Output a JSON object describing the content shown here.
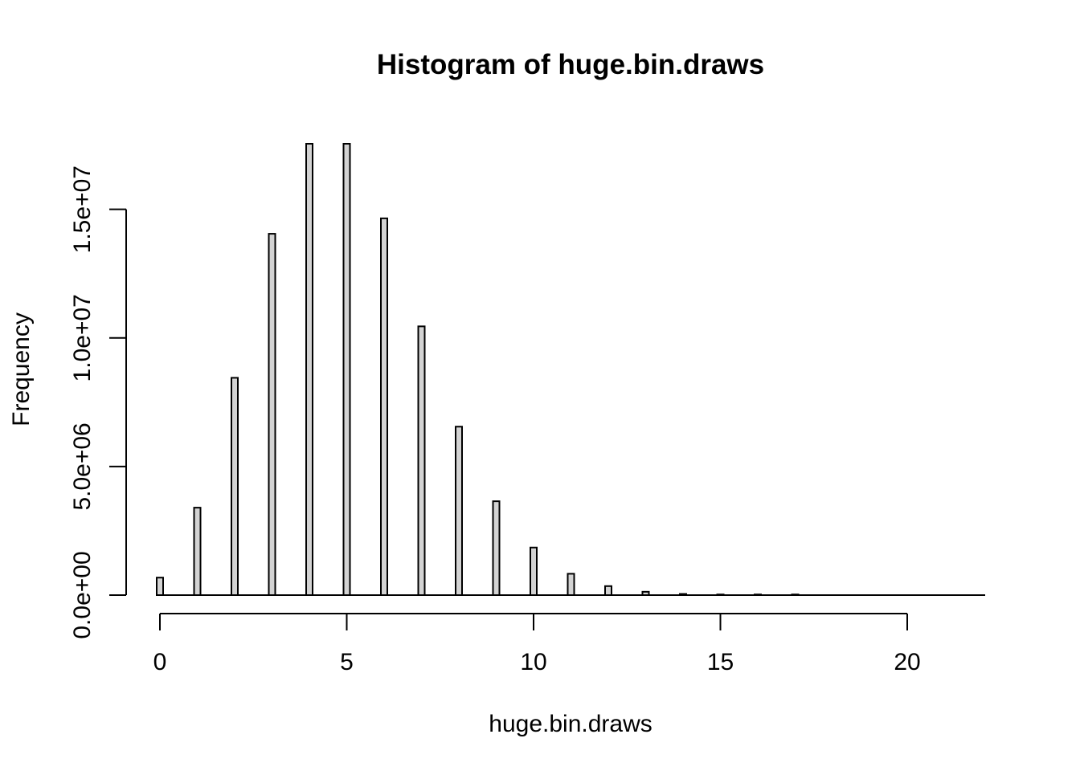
{
  "chart_data": {
    "type": "bar",
    "title": "Histogram of huge.bin.draws",
    "xlabel": "huge.bin.draws",
    "ylabel": "Frequency",
    "x": [
      0,
      1,
      2,
      3,
      4,
      5,
      6,
      7,
      8,
      9,
      10,
      11,
      12,
      13,
      14,
      15,
      16,
      17,
      18,
      19,
      20,
      21,
      22
    ],
    "values": [
      680000,
      3400000,
      8450000,
      14050000,
      17550000,
      17550000,
      14650000,
      10450000,
      6550000,
      3650000,
      1850000,
      830000,
      350000,
      130000,
      45000,
      10000,
      3000,
      1000,
      0,
      0,
      0,
      0,
      0
    ],
    "xlim": [
      0,
      22
    ],
    "ylim": [
      0,
      17550000
    ],
    "x_ticks": [
      0,
      5,
      10,
      15,
      20
    ],
    "x_tick_labels": [
      "0",
      "5",
      "10",
      "15",
      "20"
    ],
    "y_ticks": [
      0,
      5000000,
      10000000,
      15000000
    ],
    "y_tick_labels": [
      "0.0e+00",
      "5.0e+06",
      "1.0e+07",
      "1.5e+07"
    ],
    "bar_fill": "#d3d3d3",
    "bar_stroke": "#000000",
    "grid": false,
    "legend": "none"
  }
}
